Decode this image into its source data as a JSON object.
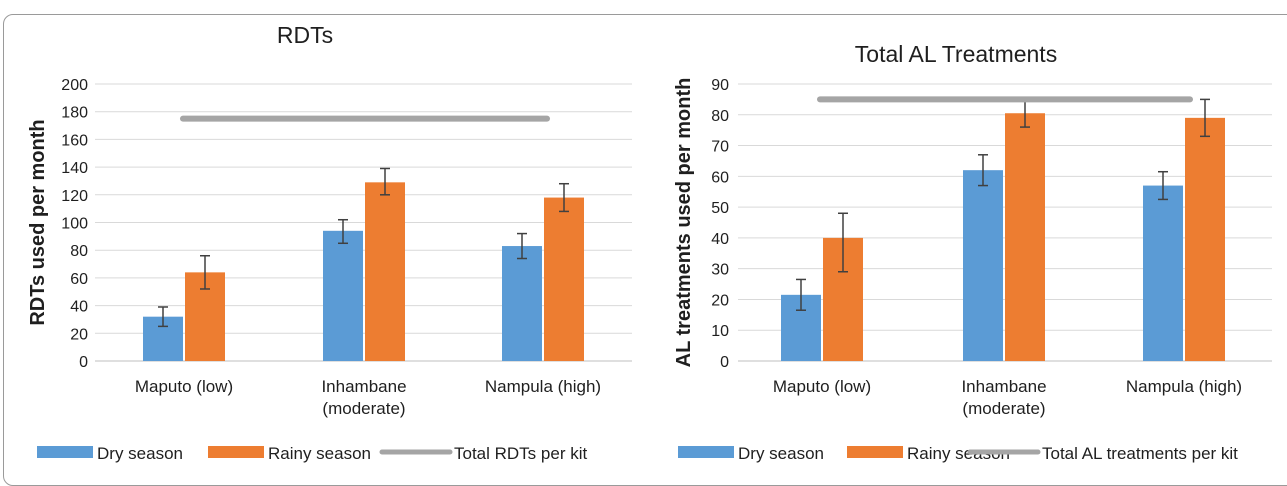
{
  "chart_data": [
    {
      "type": "bar",
      "title": "RDTs",
      "ylabel": "RDTs used per month",
      "xlabel": "",
      "categories": [
        [
          "Maputo (low)"
        ],
        [
          "Inhambane",
          "(moderate)"
        ],
        [
          "Nampula (high)"
        ]
      ],
      "ylim": [
        0,
        200
      ],
      "ytick_step": 20,
      "yticks": [
        "0",
        "20",
        "40",
        "60",
        "80",
        "100",
        "120",
        "140",
        "160",
        "180",
        "200"
      ],
      "grid": true,
      "series": [
        {
          "name": "Dry season",
          "color": "#5B9BD5",
          "values": [
            32,
            94,
            83
          ],
          "err_low": [
            25,
            85,
            74
          ],
          "err_high": [
            39,
            102,
            92
          ]
        },
        {
          "name": "Rainy season",
          "color": "#ED7D31",
          "values": [
            64,
            129,
            118
          ],
          "err_low": [
            52,
            120,
            108
          ],
          "err_high": [
            76,
            139,
            128
          ]
        }
      ],
      "reference_line": {
        "name": "Total RDTs per kit",
        "value": 175,
        "color": "#A5A5A5"
      },
      "legend_position": "bottom"
    },
    {
      "type": "bar",
      "title": "Total AL Treatments",
      "ylabel": "AL treatments used per month",
      "xlabel": "",
      "categories": [
        [
          "Maputo (low)"
        ],
        [
          "Inhambane",
          "(moderate)"
        ],
        [
          "Nampula (high)"
        ]
      ],
      "ylim": [
        0,
        90
      ],
      "ytick_step": 10,
      "yticks": [
        "0",
        "10",
        "20",
        "30",
        "40",
        "50",
        "60",
        "70",
        "80",
        "90"
      ],
      "grid": true,
      "series": [
        {
          "name": "Dry season",
          "color": "#5B9BD5",
          "values": [
            21.5,
            62,
            57
          ],
          "err_low": [
            16.5,
            57,
            52.5
          ],
          "err_high": [
            26.5,
            67,
            61.5
          ]
        },
        {
          "name": "Rainy season",
          "color": "#ED7D31",
          "values": [
            40,
            80.5,
            79
          ],
          "err_low": [
            29,
            76,
            73
          ],
          "err_high": [
            48,
            85,
            85
          ]
        }
      ],
      "reference_line": {
        "name": "Total AL treatments per kit",
        "value": 85,
        "color": "#A5A5A5"
      },
      "legend_position": "bottom"
    }
  ]
}
